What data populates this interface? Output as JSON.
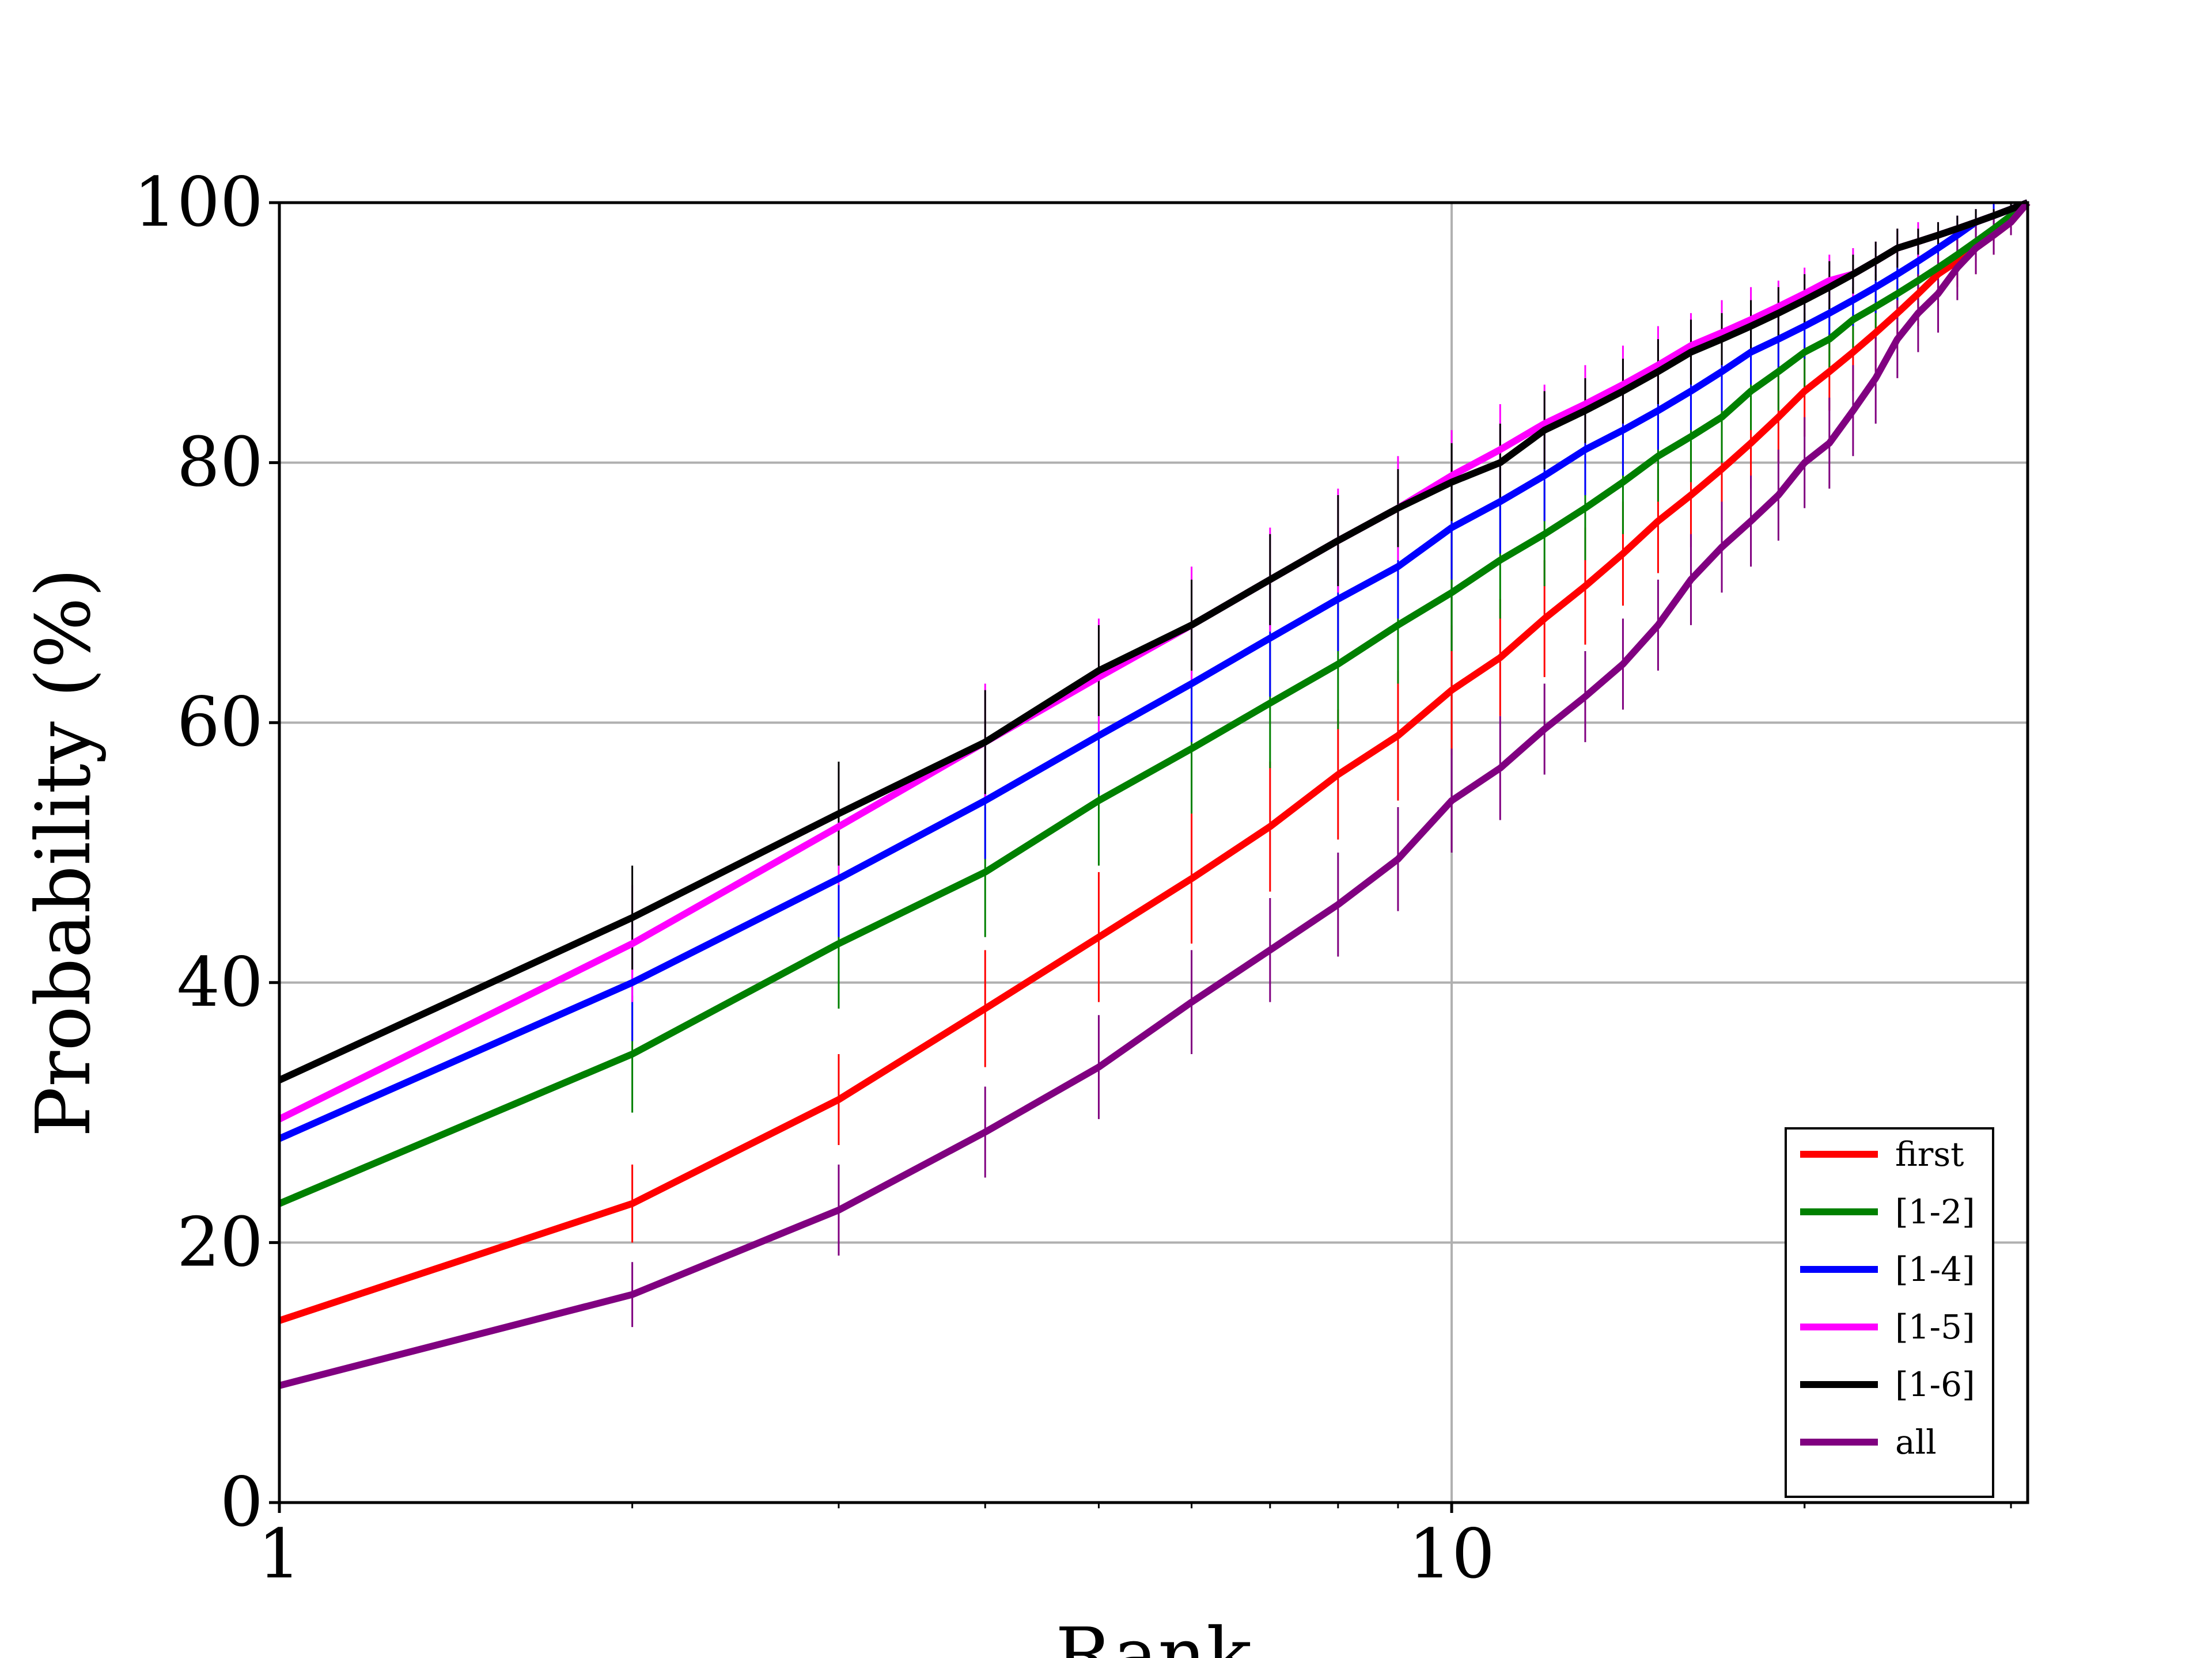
{
  "chart_data": {
    "type": "line",
    "title": "",
    "xlabel": "Rank",
    "ylabel": "Probability (%)",
    "xscale": "log",
    "xlim": [
      1,
      31
    ],
    "ylim": [
      0,
      100
    ],
    "x_ticks": [
      1,
      10
    ],
    "x_tick_labels": [
      "1",
      "10"
    ],
    "y_ticks": [
      0,
      20,
      40,
      60,
      80,
      100
    ],
    "y_tick_labels": [
      "0",
      "20",
      "40",
      "60",
      "80",
      "100"
    ],
    "grid": true,
    "legend_position": "lower-right",
    "error_bars": true,
    "x": [
      1,
      2,
      3,
      4,
      5,
      6,
      7,
      8,
      9,
      10,
      11,
      12,
      13,
      14,
      15,
      16,
      17,
      18,
      19,
      20,
      21,
      22,
      23,
      24,
      25,
      26,
      27,
      28,
      29,
      30,
      31
    ],
    "series": [
      {
        "name": "first",
        "color": "#ff0000",
        "values": [
          14,
          23,
          31,
          38,
          43.5,
          48,
          52,
          56,
          59,
          62.5,
          65,
          68,
          70.5,
          73,
          75.5,
          77.5,
          79.5,
          81.5,
          83.5,
          85.5,
          87,
          88.5,
          90,
          91.5,
          93,
          94.5,
          95.5,
          96.5,
          97.5,
          98.5,
          100
        ],
        "errors": [
          0,
          3,
          3.5,
          4.5,
          5,
          5,
          5,
          5,
          5,
          5,
          4.5,
          4.5,
          4.5,
          4,
          4,
          4,
          4,
          3.5,
          3.5,
          3.5,
          3,
          3,
          3,
          2.5,
          2.5,
          2.5,
          2,
          2,
          1.5,
          1,
          0
        ]
      },
      {
        "name": "[1-2]",
        "color": "#008000",
        "values": [
          23,
          34.5,
          43,
          48.5,
          54,
          58,
          61.5,
          64.5,
          67.5,
          70,
          72.5,
          74.5,
          76.5,
          78.5,
          80.5,
          82,
          83.5,
          85.5,
          87,
          88.5,
          89.5,
          91,
          92,
          93,
          94,
          95,
          96,
          97,
          98,
          99,
          100
        ],
        "errors": [
          0,
          4.5,
          5,
          5,
          5,
          5,
          5,
          5,
          4.5,
          4.5,
          4.5,
          4,
          4,
          4,
          3.5,
          3.5,
          3.5,
          3,
          3,
          3,
          2.5,
          2.5,
          2.5,
          2,
          2,
          2,
          1.5,
          1.5,
          1,
          1,
          0
        ]
      },
      {
        "name": "[1-4]",
        "color": "#0000ff",
        "values": [
          28,
          40,
          48,
          54,
          59,
          63,
          66.5,
          69.5,
          72,
          75,
          77,
          79,
          81,
          82.5,
          84,
          85.5,
          87,
          88.5,
          89.5,
          90.5,
          91.5,
          92.5,
          93.5,
          94.5,
          95.5,
          96.5,
          97.5,
          98.5,
          99,
          99.5,
          100
        ],
        "errors": [
          0,
          4.5,
          4.5,
          4.5,
          4.5,
          4.5,
          4.5,
          4,
          4,
          4,
          4,
          3.5,
          3.5,
          3.5,
          3,
          3,
          3,
          2.5,
          2.5,
          2.5,
          2,
          2,
          2,
          2,
          1.5,
          1.5,
          1.5,
          1,
          1,
          0.5,
          0
        ]
      },
      {
        "name": "[1-5]",
        "color": "#ff00ff",
        "values": [
          29.5,
          43,
          52,
          58.5,
          63.5,
          67.5,
          71,
          74,
          76.5,
          79,
          81,
          83,
          84.5,
          86,
          87.5,
          89,
          90,
          91,
          92,
          93,
          94,
          94.5,
          95.5,
          96.5,
          97,
          97.5,
          98,
          98.5,
          99,
          99.5,
          100
        ],
        "errors": [
          0,
          4.5,
          4.5,
          4.5,
          4.5,
          4.5,
          4,
          4,
          4,
          3.5,
          3.5,
          3,
          3,
          3,
          3,
          2.5,
          2.5,
          2.5,
          2,
          2,
          2,
          2,
          1.5,
          1.5,
          1.5,
          1,
          1,
          1,
          0.5,
          0.5,
          0
        ]
      },
      {
        "name": "[1-6]",
        "color": "#000000",
        "values": [
          32.5,
          45,
          53,
          58.5,
          64,
          67.5,
          71,
          74,
          76.5,
          78.5,
          80,
          82.5,
          84,
          85.5,
          87,
          88.5,
          89.5,
          90.5,
          91.5,
          92.5,
          93.5,
          94.5,
          95.5,
          96.5,
          97,
          97.5,
          98,
          98.5,
          99,
          99.5,
          100
        ],
        "errors": [
          0,
          4,
          4,
          4,
          3.5,
          3.5,
          3.5,
          3.5,
          3,
          3,
          3,
          3,
          2.5,
          2.5,
          2.5,
          2.5,
          2,
          2,
          2,
          2,
          2,
          1.5,
          1.5,
          1.5,
          1,
          1,
          1,
          1,
          0.5,
          0.5,
          0
        ]
      },
      {
        "name": "all",
        "color": "#800080",
        "values": [
          9,
          16,
          22.5,
          28.5,
          33.5,
          38.5,
          42.5,
          46,
          49.5,
          54,
          56.5,
          59.5,
          62,
          64.5,
          67.5,
          71,
          73.5,
          75.5,
          77.5,
          80,
          81.5,
          84,
          86.5,
          89.5,
          91.5,
          93,
          95,
          96.5,
          97.5,
          98.5,
          100
        ],
        "errors": [
          0,
          2.5,
          3.5,
          3.5,
          4,
          4,
          4,
          4,
          4,
          4,
          4,
          3.5,
          3.5,
          3.5,
          3.5,
          3.5,
          3.5,
          3.5,
          3.5,
          3.5,
          3.5,
          3.5,
          3.5,
          3,
          3,
          3,
          2.5,
          2,
          1.5,
          1,
          0
        ]
      }
    ]
  }
}
